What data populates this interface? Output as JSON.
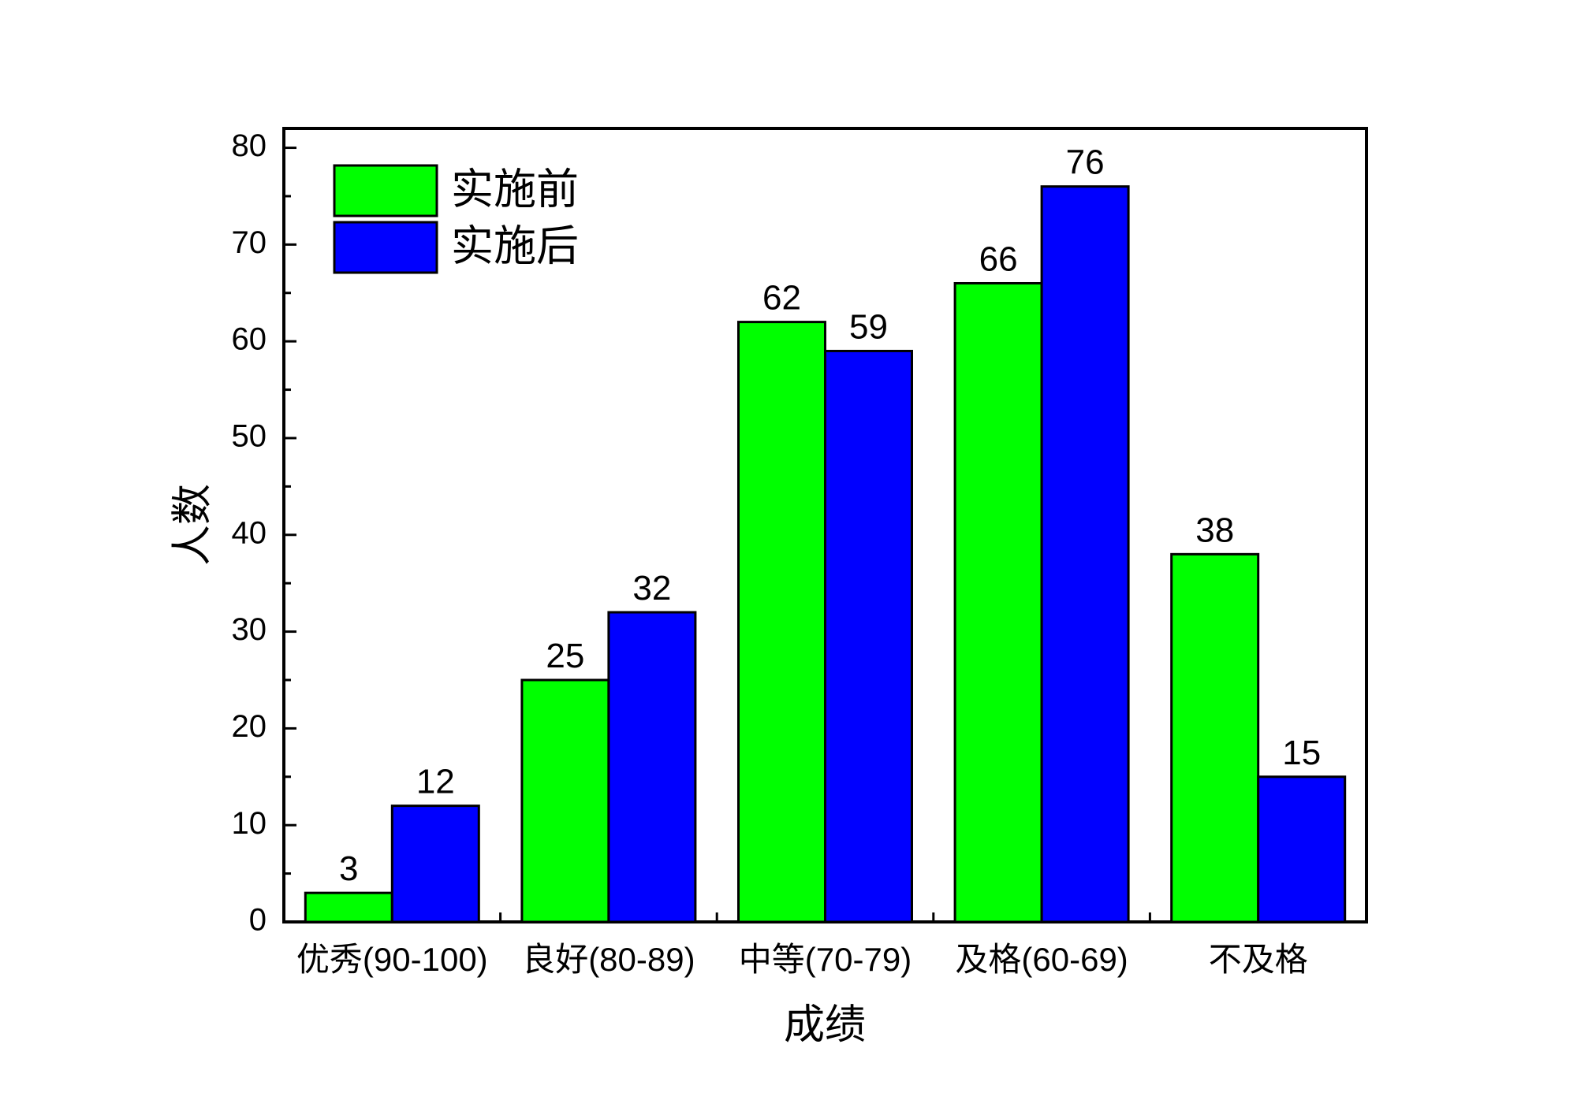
{
  "chart_data": {
    "type": "bar",
    "categories": [
      "优秀(90-100)",
      "良好(80-89)",
      "中等(70-79)",
      "及格(60-69)",
      "不及格"
    ],
    "series": [
      {
        "name": "实施前",
        "values": [
          3,
          25,
          62,
          66,
          38
        ],
        "color": "#00ff00"
      },
      {
        "name": "实施后",
        "values": [
          12,
          32,
          59,
          76,
          15
        ],
        "color": "#0000ff"
      }
    ],
    "xlabel": "成绩",
    "ylabel": "人数",
    "ylim": [
      0,
      82
    ],
    "yticks": [
      0,
      10,
      20,
      30,
      40,
      50,
      60,
      70,
      80
    ],
    "ytick_labels": [
      "0",
      "10",
      "20",
      "30",
      "40",
      "50",
      "60",
      "70",
      "80"
    ],
    "data_labels": [
      [
        "3",
        "25",
        "62",
        "66",
        "38"
      ],
      [
        "12",
        "32",
        "59",
        "76",
        "15"
      ]
    ],
    "legend_position": "top-left",
    "grid": false
  }
}
